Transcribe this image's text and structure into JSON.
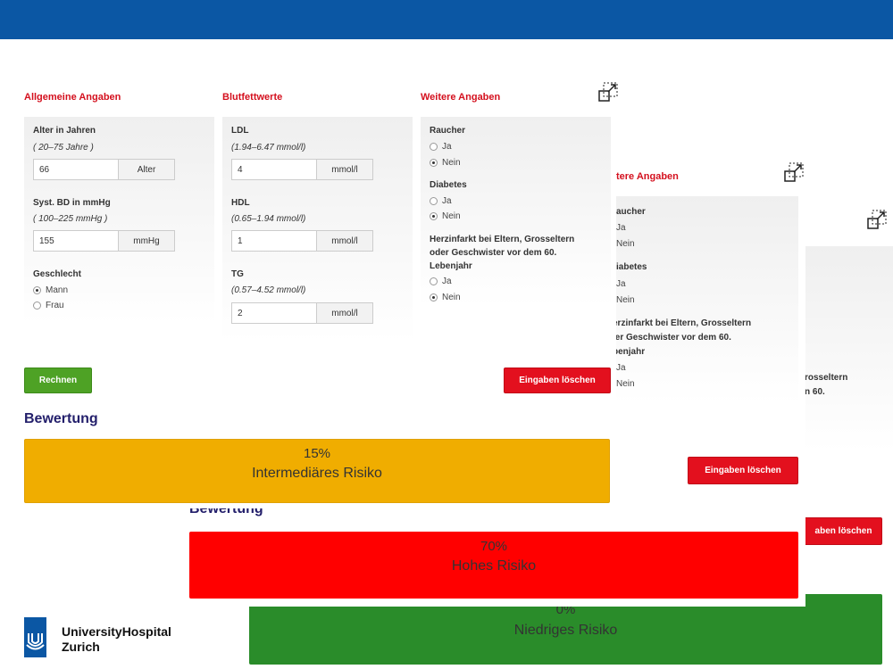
{
  "sections": {
    "general": "Allgemeine Angaben",
    "lipids": "Blutfettwerte",
    "more": "Weitere Angaben"
  },
  "age": {
    "label": "Alter in Jahren",
    "hint": "( 20–75 Jahre )",
    "value": "66",
    "unit": "Alter"
  },
  "bp": {
    "label": "Syst. BD in mmHg",
    "hint": "( 100–225 mmHg )",
    "value": "155",
    "unit": "mmHg"
  },
  "sex": {
    "label": "Geschlecht",
    "options": [
      "Mann",
      "Frau"
    ],
    "selected": "Mann"
  },
  "ldl": {
    "label": "LDL",
    "hint": "(1.94–6.47 mmol/l)",
    "value": "4",
    "unit": "mmol/l"
  },
  "hdl": {
    "label": "HDL",
    "hint": "(0.65–1.94 mmol/l)",
    "value": "1",
    "unit": "mmol/l"
  },
  "tg": {
    "label": "TG",
    "hint": "(0.57–4.52 mmol/l)",
    "value": "2",
    "unit": "mmol/l"
  },
  "smoker": {
    "label": "Raucher",
    "options": [
      "Ja",
      "Nein"
    ],
    "selected": "Nein"
  },
  "diabetes": {
    "label": "Diabetes",
    "options": [
      "Ja",
      "Nein"
    ],
    "selected": "Nein"
  },
  "family": {
    "label_lines": [
      "Herzinfarkt bei Eltern, Grosseltern",
      "oder Geschwister vor dem 60.",
      "Lebenjahr"
    ],
    "options": [
      "Ja",
      "Nein"
    ],
    "selected": "Nein"
  },
  "buttons": {
    "calculate": "Rechnen",
    "clear": "Eingaben löschen"
  },
  "assessment_title": "Bewertung",
  "results": [
    {
      "percent": "15%",
      "label": "Intermediäres Risiko",
      "color": "#f0ad00"
    },
    {
      "percent": "70%",
      "label": "Hohes Risiko",
      "color": "#ff0000"
    },
    {
      "percent": "0%",
      "label": "Niedriges Risiko",
      "color": "#2a8c2a"
    }
  ],
  "overlay2": {
    "section_title": "tere Angaben",
    "smoker_label": "aucher",
    "diabetes_label": "iabetes",
    "family_lines": [
      "erzinfarkt bei Eltern, Grosseltern",
      "ler Geschwister vor dem 60.",
      "benjahr"
    ],
    "options": [
      "Ja",
      "Nein"
    ]
  },
  "overlay3": {
    "family_lines": [
      "rosseltern",
      "n 60."
    ],
    "clear": "aben löschen",
    "assessment_fragment": "Bewertung"
  },
  "logo": {
    "line1": "UniversityHospital",
    "line2": "Zurich"
  },
  "colors": {
    "topbar": "#0b57a4",
    "section_title": "#d4101e",
    "heading": "#231f6b"
  },
  "icons": [
    "resize-icon",
    "logo-icon"
  ]
}
